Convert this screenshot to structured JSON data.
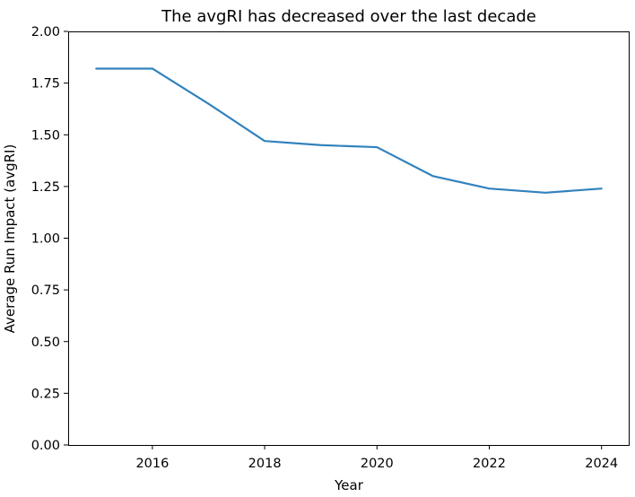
{
  "chart_data": {
    "type": "line",
    "title": "The avgRI has decreased over the last decade",
    "xlabel": "Year",
    "ylabel": "Average Run Impact (avgRI)",
    "xlim": [
      2014.5,
      2024.5
    ],
    "ylim": [
      0,
      2
    ],
    "x_ticks": [
      2016,
      2018,
      2020,
      2022,
      2024
    ],
    "x_tick_labels": [
      "2016",
      "2018",
      "2020",
      "2022",
      "2024"
    ],
    "y_ticks": [
      0,
      0.25,
      0.5,
      0.75,
      1.0,
      1.25,
      1.5,
      1.75,
      2.0
    ],
    "y_tick_labels": [
      "0.00",
      "0.25",
      "0.50",
      "0.75",
      "1.00",
      "1.25",
      "1.50",
      "1.75",
      "2.00"
    ],
    "grid": false,
    "series": [
      {
        "color": "#3282bd",
        "x": [
          2015,
          2016,
          2017,
          2018,
          2019,
          2020,
          2021,
          2022,
          2023,
          2024
        ],
        "y": [
          1.82,
          1.82,
          1.65,
          1.47,
          1.45,
          1.44,
          1.3,
          1.24,
          1.22,
          1.24
        ]
      }
    ]
  }
}
